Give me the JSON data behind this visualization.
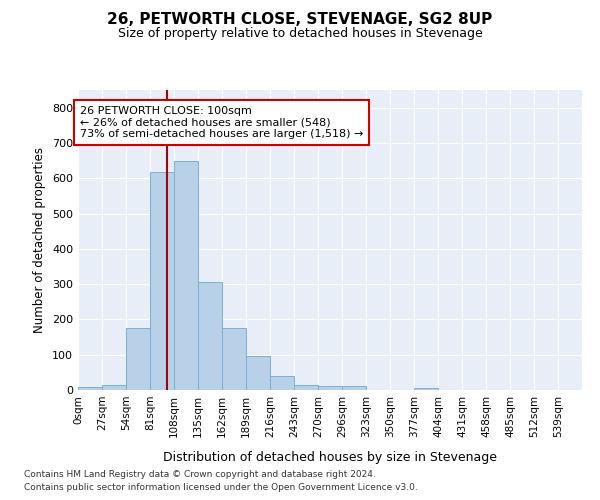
{
  "title": "26, PETWORTH CLOSE, STEVENAGE, SG2 8UP",
  "subtitle": "Size of property relative to detached houses in Stevenage",
  "xlabel": "Distribution of detached houses by size in Stevenage",
  "ylabel": "Number of detached properties",
  "bar_color": "#b8d0e8",
  "bar_edge_color": "#7aafd4",
  "background_color": "#e8eef8",
  "bin_labels": [
    "0sqm",
    "27sqm",
    "54sqm",
    "81sqm",
    "108sqm",
    "135sqm",
    "162sqm",
    "189sqm",
    "216sqm",
    "243sqm",
    "270sqm",
    "296sqm",
    "323sqm",
    "350sqm",
    "377sqm",
    "404sqm",
    "431sqm",
    "458sqm",
    "485sqm",
    "512sqm",
    "539sqm"
  ],
  "bin_values": [
    8,
    15,
    175,
    618,
    650,
    305,
    175,
    97,
    40,
    15,
    10,
    10,
    0,
    0,
    5,
    0,
    0,
    0,
    0,
    0,
    0
  ],
  "bin_width": 27,
  "vline_x": 100,
  "vline_color": "#aa0000",
  "annotation_text": "26 PETWORTH CLOSE: 100sqm\n← 26% of detached houses are smaller (548)\n73% of semi-detached houses are larger (1,518) →",
  "annotation_box_color": "white",
  "annotation_box_edge": "#cc0000",
  "ylim": [
    0,
    850
  ],
  "yticks": [
    0,
    100,
    200,
    300,
    400,
    500,
    600,
    700,
    800
  ],
  "footer_line1": "Contains HM Land Registry data © Crown copyright and database right 2024.",
  "footer_line2": "Contains public sector information licensed under the Open Government Licence v3.0."
}
